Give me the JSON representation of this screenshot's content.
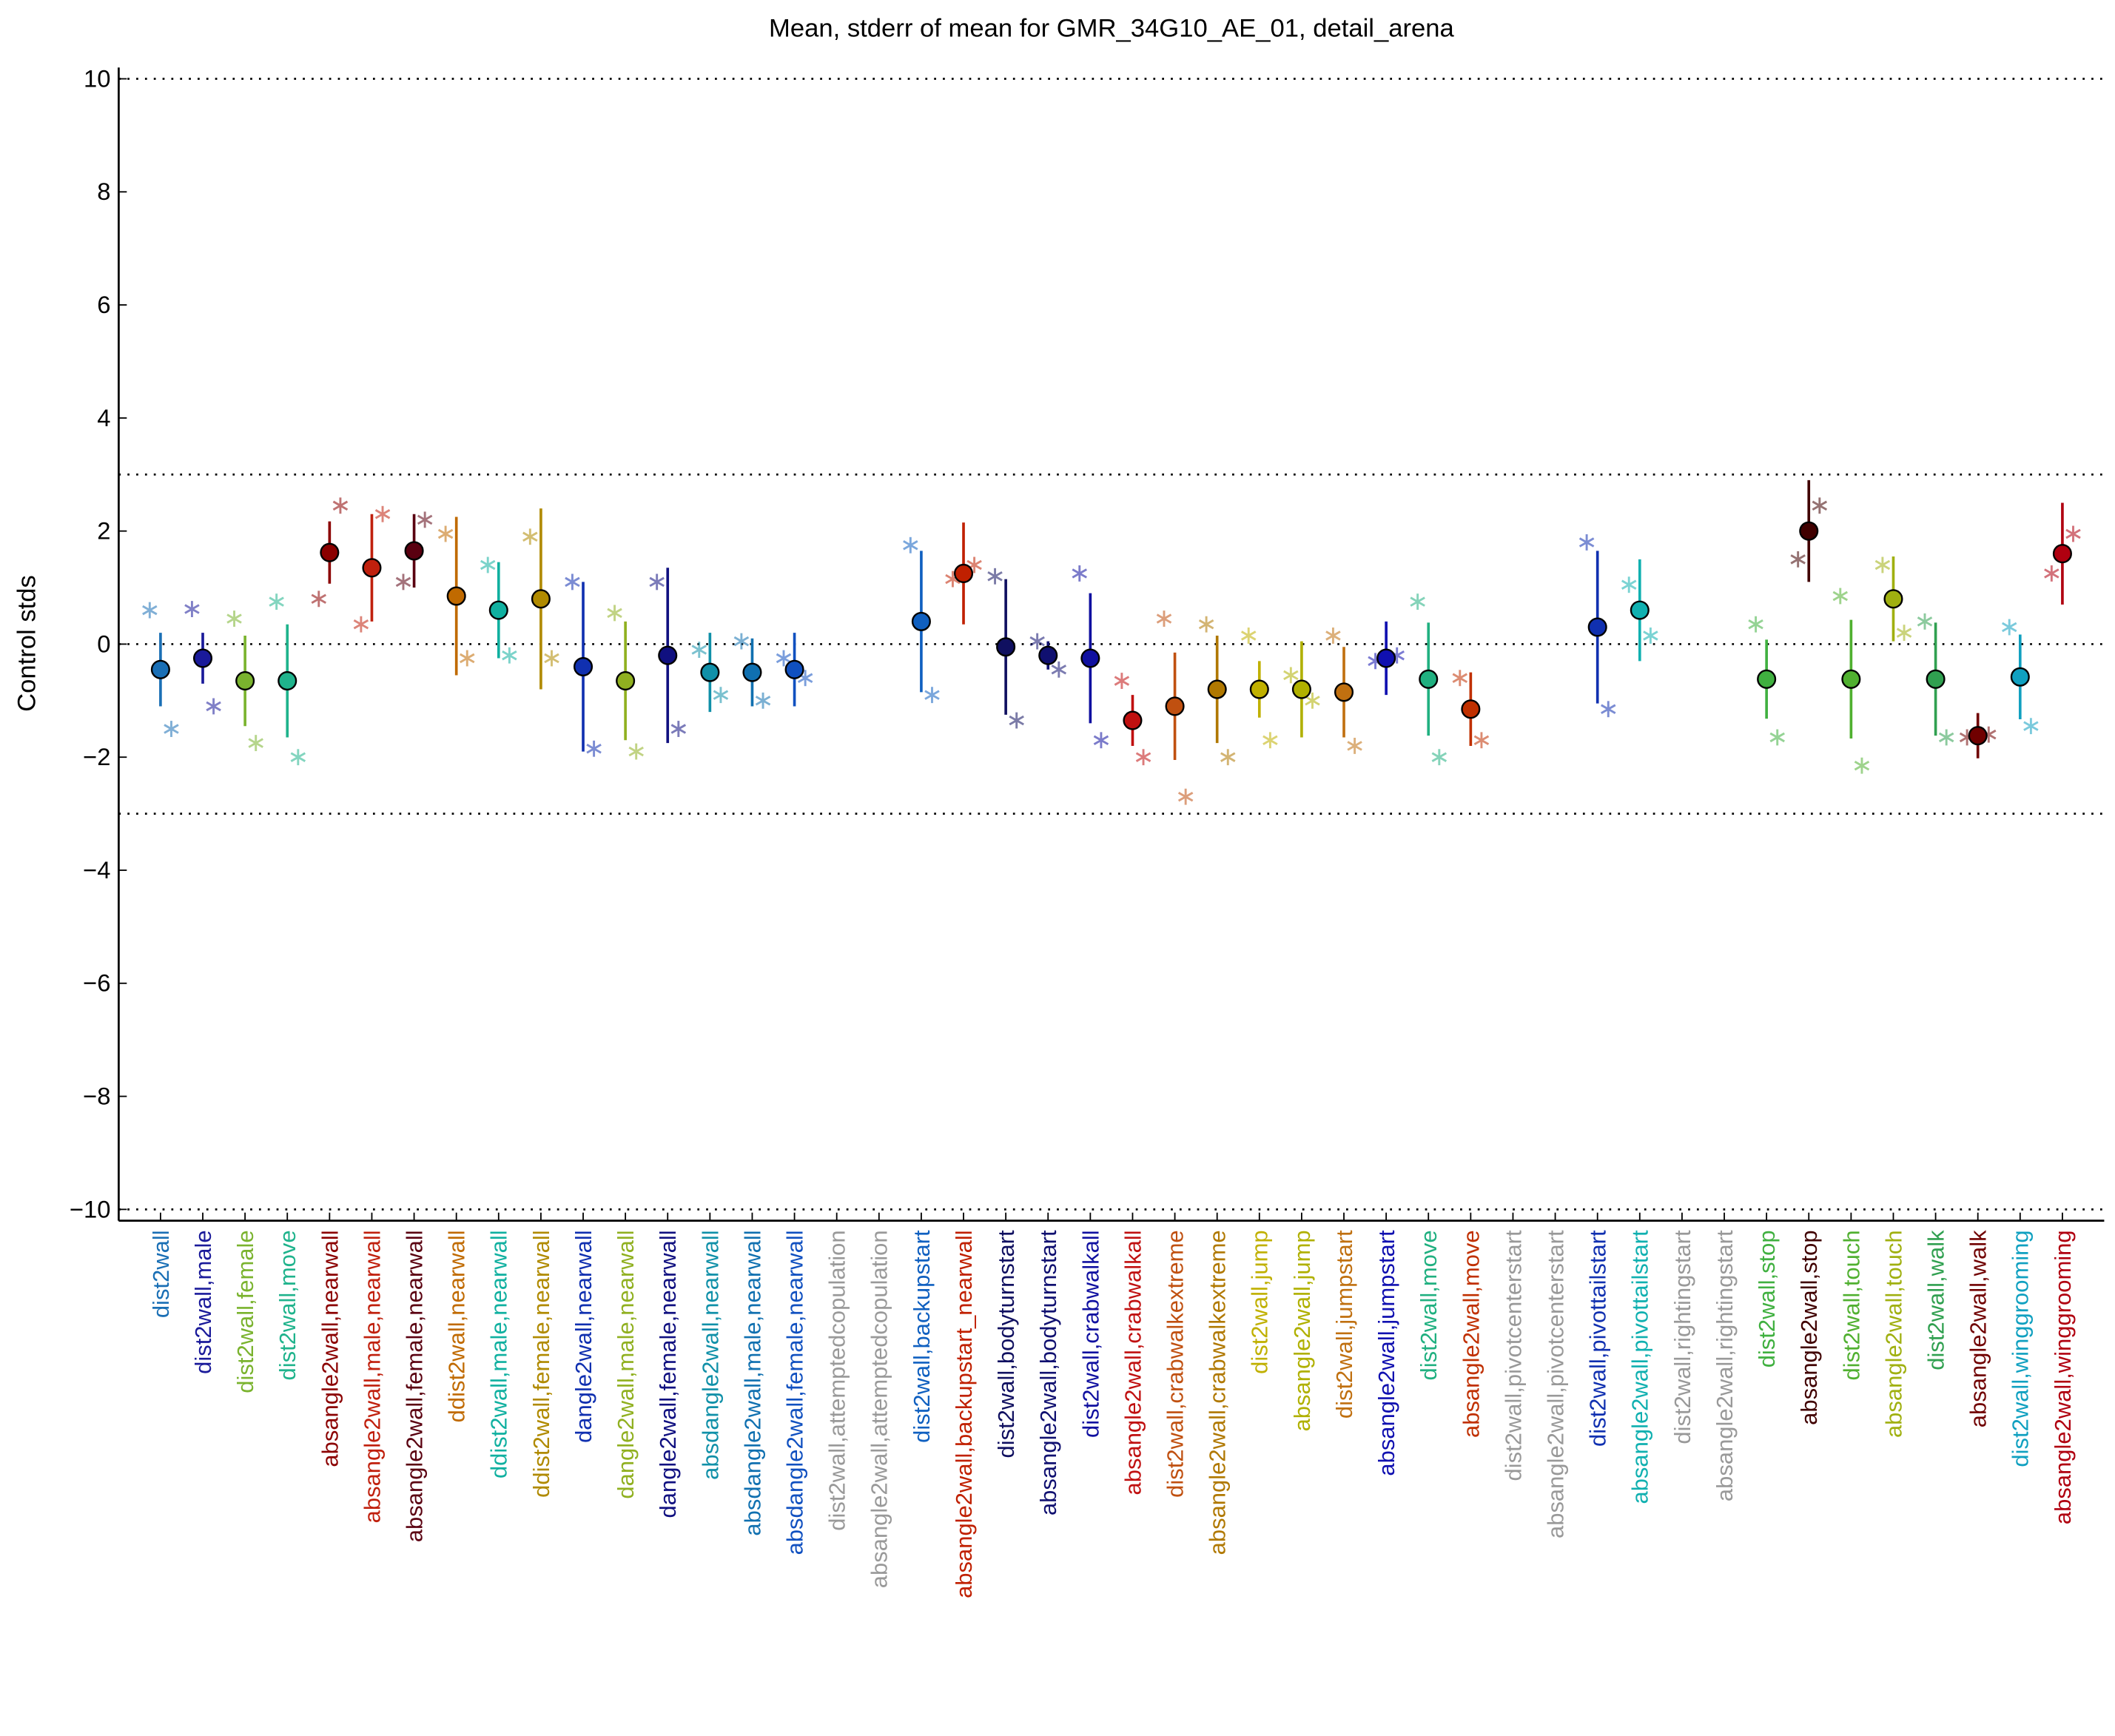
{
  "chart_data": {
    "type": "errorbar",
    "title": "Mean, stderr of mean for GMR_34G10_AE_01, detail_arena",
    "ylabel": "Control stds",
    "ylim": [
      -10.2,
      10.2
    ],
    "yticks": [
      {
        "value": -10,
        "label": "−10"
      },
      {
        "value": -8,
        "label": "−8"
      },
      {
        "value": -6,
        "label": "−6"
      },
      {
        "value": -4,
        "label": "−4"
      },
      {
        "value": -2,
        "label": "−2"
      },
      0,
      2,
      4,
      6,
      8,
      10
    ],
    "hlines": [
      -10,
      -3,
      0,
      3,
      10
    ],
    "categories": [
      "dist2wall",
      "dist2wall,male",
      "dist2wall,female",
      "dist2wall,move",
      "absangle2wall,nearwall",
      "absangle2wall,male,nearwall",
      "absangle2wall,female,nearwall",
      "ddist2wall,nearwall",
      "ddist2wall,male,nearwall",
      "ddist2wall,female,nearwall",
      "dangle2wall,nearwall",
      "dangle2wall,male,nearwall",
      "dangle2wall,female,nearwall",
      "absdangle2wall,nearwall",
      "absdangle2wall,male,nearwall",
      "absdangle2wall,female,nearwall",
      "dist2wall,attemptedcopulation",
      "absangle2wall,attemptedcopulation",
      "dist2wall,backupstart",
      "absangle2wall,backupstart_nearwall",
      "dist2wall,bodyturnstart",
      "absangle2wall,bodyturnstart",
      "dist2wall,crabwalkall",
      "absangle2wall,crabwalkall",
      "dist2wall,crabwalkextreme",
      "absangle2wall,crabwalkextreme",
      "dist2wall,jump",
      "absangle2wall,jump",
      "dist2wall,jumpstart",
      "absangle2wall,jumpstart",
      "dist2wall,move",
      "absangle2wall,move",
      "dist2wall,pivotcenterstart",
      "absangle2wall,pivotcenterstart",
      "dist2wall,pivottailstart",
      "absangle2wall,pivottailstart",
      "dist2wall,rightingstart",
      "absangle2wall,rightingstart",
      "dist2wall,stop",
      "absangle2wall,stop",
      "dist2wall,touch",
      "absangle2wall,touch",
      "dist2wall,walk",
      "absangle2wall,walk",
      "dist2wall,winggrooming",
      "absangle2wall,winggrooming"
    ],
    "colors": [
      "#1a6fb5",
      "#1a1a9a",
      "#7ab32e",
      "#1fb38c",
      "#8b0000",
      "#c0200d",
      "#5a0010",
      "#c06a00",
      "#10b0a0",
      "#b08a00",
      "#1030b0",
      "#90b020",
      "#101080",
      "#1090a8",
      "#1070b0",
      "#1050c0",
      "#999999",
      "#999999",
      "#1060c0",
      "#c02000",
      "#101060",
      "#101070",
      "#1010a0",
      "#c01010",
      "#c05010",
      "#b07800",
      "#c0b000",
      "#b0b000",
      "#c07010",
      "#1010b0",
      "#20b080",
      "#c03000",
      "#999999",
      "#999999",
      "#1030b0",
      "#10b0b0",
      "#999999",
      "#999999",
      "#40b040",
      "#400000",
      "#50b030",
      "#a0b010",
      "#30a050",
      "#700000",
      "#10a0c0",
      "#b00010"
    ],
    "values": [
      -0.45,
      -0.25,
      -0.65,
      -0.65,
      1.62,
      1.35,
      1.65,
      0.85,
      0.6,
      0.8,
      -0.4,
      -0.65,
      -0.2,
      -0.5,
      -0.5,
      -0.45,
      null,
      null,
      0.4,
      1.25,
      -0.05,
      -0.2,
      -0.25,
      -1.35,
      -1.1,
      -0.8,
      -0.8,
      -0.8,
      -0.85,
      -0.25,
      -0.62,
      -1.15,
      null,
      null,
      0.3,
      0.6,
      null,
      null,
      -0.62,
      2.0,
      -0.62,
      0.8,
      -0.62,
      -1.62,
      -0.58,
      1.6
    ],
    "errors": [
      0.65,
      0.45,
      0.8,
      1.0,
      0.55,
      0.95,
      0.65,
      1.4,
      0.85,
      1.6,
      1.5,
      1.05,
      1.55,
      0.7,
      0.6,
      0.65,
      null,
      null,
      1.25,
      0.9,
      1.2,
      0.25,
      1.15,
      0.45,
      0.95,
      0.95,
      0.5,
      0.85,
      0.8,
      0.65,
      1.0,
      0.65,
      null,
      null,
      1.35,
      0.9,
      null,
      null,
      0.7,
      0.9,
      1.05,
      0.75,
      1.0,
      0.4,
      0.75,
      0.9
    ],
    "star_left": [
      0.6,
      0.62,
      0.45,
      0.75,
      0.8,
      0.35,
      1.1,
      1.95,
      1.4,
      1.9,
      1.1,
      0.55,
      1.1,
      -0.1,
      0.05,
      -0.25,
      null,
      null,
      1.75,
      1.15,
      1.2,
      0.05,
      1.25,
      -0.65,
      0.45,
      0.35,
      0.15,
      -0.55,
      0.15,
      -0.3,
      0.75,
      -0.6,
      null,
      null,
      1.8,
      1.05,
      null,
      null,
      0.35,
      1.5,
      0.85,
      1.4,
      0.4,
      -1.65,
      0.3,
      1.25
    ],
    "star_right": [
      -1.5,
      -1.1,
      -1.75,
      -2.0,
      2.45,
      2.3,
      2.2,
      -0.25,
      -0.2,
      -0.25,
      -1.85,
      -1.9,
      -1.5,
      -0.9,
      -1.0,
      -0.6,
      null,
      null,
      -0.9,
      1.4,
      -1.35,
      -0.45,
      -1.7,
      -2.0,
      -2.7,
      -2.0,
      -1.7,
      -1.0,
      -1.8,
      -0.2,
      -2.0,
      -1.7,
      null,
      null,
      -1.15,
      0.15,
      null,
      null,
      -1.65,
      2.45,
      -2.15,
      0.2,
      -1.65,
      -1.6,
      -1.45,
      1.95
    ]
  }
}
